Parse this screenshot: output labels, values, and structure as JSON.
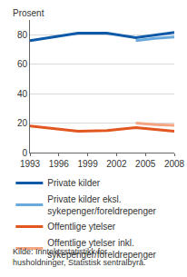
{
  "chart_data": {
    "type": "line",
    "ylabel": "Prosent",
    "source": "Kilde: Inntektsstatistikk for husholdninger, Statistisk sentralbyrå.",
    "xlim": [
      1993,
      2008
    ],
    "xticks": [
      1993,
      1996,
      1999,
      2002,
      2005,
      2008
    ],
    "ylim": [
      0,
      90
    ],
    "yticks": [
      0,
      20,
      40,
      60,
      80
    ],
    "grid": true,
    "legend": "bottom",
    "series": [
      {
        "name": "Private kilder",
        "color": "#0f5aa8",
        "x": [
          1993,
          1998,
          2001,
          2004,
          2008
        ],
        "values": [
          76,
          81,
          81,
          78,
          81.5
        ]
      },
      {
        "name": "Private kilder eksl. sykepenger/foreldrepenger",
        "color": "#6aa9dc",
        "x": [
          2004,
          2006,
          2008
        ],
        "values": [
          76,
          77.5,
          78.5
        ]
      },
      {
        "name": "Offentlige ytelser",
        "color": "#e2561f",
        "x": [
          1993,
          1998,
          2001,
          2004,
          2008
        ],
        "values": [
          18,
          14.5,
          15,
          17,
          14.5
        ]
      },
      {
        "name": "Offentlige ytelser inkl. sykepenger/foreldrepenger",
        "color": "#f4a582",
        "x": [
          2004,
          2006,
          2008
        ],
        "values": [
          20,
          19,
          18.5
        ]
      }
    ]
  }
}
